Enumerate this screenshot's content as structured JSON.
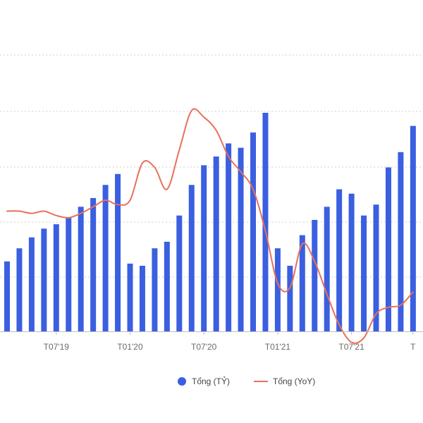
{
  "chart_data": {
    "type": "bar",
    "colors": {
      "bar": "#3a5fe0",
      "line": "#e8705b",
      "grid": "#cfcfcf",
      "axis": "#bdbdbd"
    },
    "x_tick_labels": [
      {
        "label": "T07'19",
        "index": 4
      },
      {
        "label": "T01'20",
        "index": 10
      },
      {
        "label": "T07'20",
        "index": 16
      },
      {
        "label": "T01'21",
        "index": 22
      },
      {
        "label": "T07'21",
        "index": 28
      },
      {
        "label": "T",
        "index": 33
      }
    ],
    "ylim": [
      0,
      100
    ],
    "grid": "horizontal-dashed",
    "legend_position": "bottom-center",
    "series": [
      {
        "name": "Tổng (TỶ)",
        "type": "bar",
        "values": [
          32,
          38,
          43,
          47,
          49,
          52,
          57,
          61,
          67,
          72,
          31,
          30,
          38,
          41,
          53,
          67,
          76,
          80,
          86,
          84,
          91,
          100,
          38,
          30,
          44,
          51,
          57,
          65,
          63,
          53,
          58,
          75,
          82,
          94
        ]
      },
      {
        "name": "Tổng (YoY)",
        "type": "line",
        "values": [
          55,
          55,
          54,
          55,
          53,
          52,
          54,
          57,
          60,
          58,
          60,
          77,
          75,
          65,
          83,
          101,
          98,
          92,
          80,
          73,
          65,
          46,
          22,
          20,
          40,
          32,
          17,
          3,
          -5,
          -3,
          8,
          11,
          12,
          18
        ]
      }
    ]
  }
}
